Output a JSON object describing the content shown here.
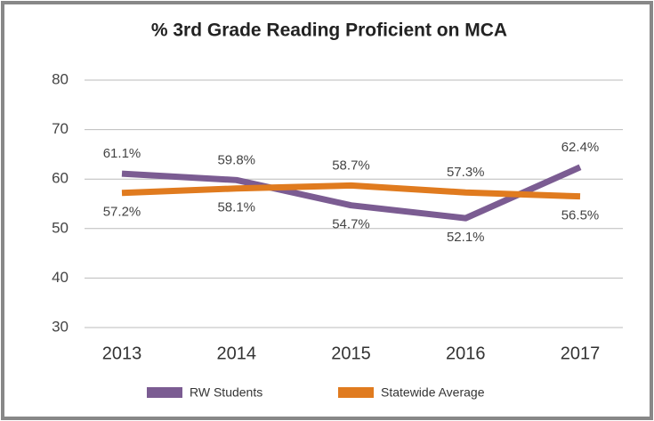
{
  "chart_data": {
    "type": "line",
    "title": "% 3rd Grade Reading Proficient on MCA",
    "categories": [
      "2013",
      "2014",
      "2015",
      "2016",
      "2017"
    ],
    "series": [
      {
        "name": "RW Students",
        "color": "#7b5c92",
        "values": [
          61.1,
          59.8,
          54.7,
          52.1,
          62.4
        ],
        "value_labels": [
          "61.1%",
          "59.8%",
          "54.7%",
          "52.1%",
          "62.4%"
        ]
      },
      {
        "name": "Statewide Average",
        "color": "#e07b1f",
        "values": [
          57.2,
          58.1,
          58.7,
          57.3,
          56.5
        ],
        "value_labels": [
          "57.2%",
          "58.1%",
          "58.7%",
          "57.3%",
          "56.5%"
        ]
      }
    ],
    "ylim": [
      30,
      80
    ],
    "yticks": [
      30,
      40,
      50,
      60,
      70,
      80
    ],
    "grid": true,
    "legend": "bottom"
  }
}
